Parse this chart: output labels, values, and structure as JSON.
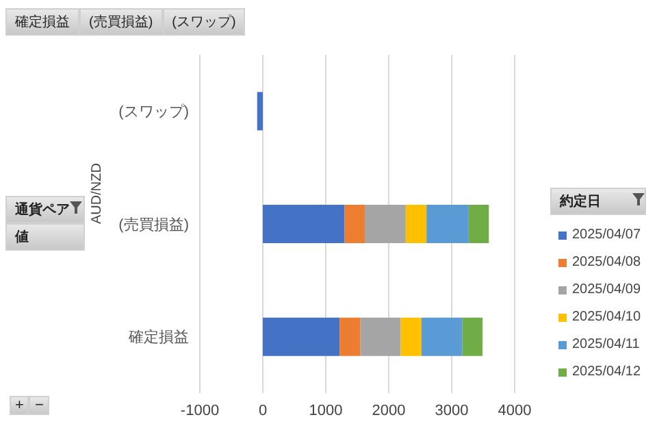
{
  "chart_data": {
    "type": "bar",
    "orientation": "horizontal",
    "stacked": true,
    "categories": [
      "(スワップ)",
      "(売買損益)",
      "確定損益"
    ],
    "series": [
      {
        "name": "2025/04/07",
        "color": "#4472c4",
        "values": [
          -90,
          1300,
          1220
        ]
      },
      {
        "name": "2025/04/08",
        "color": "#ed7d31",
        "values": [
          null,
          320,
          330
        ]
      },
      {
        "name": "2025/04/09",
        "color": "#a5a5a5",
        "values": [
          null,
          650,
          640
        ]
      },
      {
        "name": "2025/04/10",
        "color": "#ffc000",
        "values": [
          null,
          330,
          330
        ]
      },
      {
        "name": "2025/04/11",
        "color": "#5b9bd5",
        "values": [
          null,
          670,
          650
        ]
      },
      {
        "name": "2025/04/12",
        "color": "#70ad47",
        "values": [
          null,
          320,
          320
        ]
      }
    ],
    "xlim": [
      -1000,
      4000
    ],
    "xticks": [
      -1000,
      0,
      1000,
      2000,
      3000,
      4000
    ],
    "grid": "x",
    "ylabel": "AUD/NZD",
    "legend_title": "約定日",
    "legend": "right",
    "annotations": [
      "確定損益",
      "(売買損益)",
      "(スワップ)",
      "通貨ペア",
      "値",
      "+",
      "−"
    ]
  }
}
